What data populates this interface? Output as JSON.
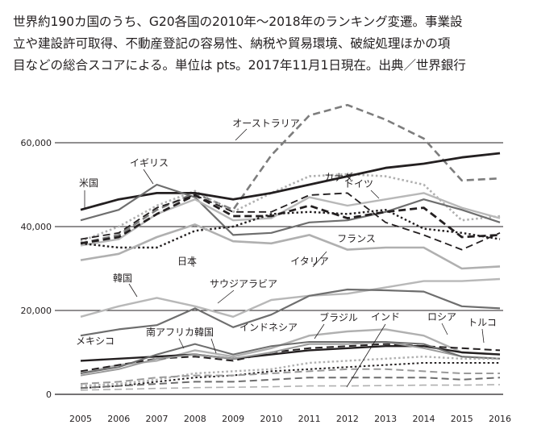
{
  "caption": {
    "lines": [
      "世界約190カ国のうち、G20各国の2010年～2018年のランキング変遷。事業設",
      "立や建設許可取得、不動産登記の容易性、納税や貿易環境、破綻処理ほかの項",
      "目などの総合スコアによる。単位は pts。2017年11月1日現在。出典／世界銀行"
    ]
  },
  "chart_data": {
    "type": "line",
    "x": [
      2005,
      2006,
      2007,
      2008,
      2009,
      2010,
      2011,
      2012,
      2013,
      2014,
      2015,
      2016
    ],
    "y_ticks": [
      {
        "value": 0,
        "label": "0"
      },
      {
        "value": 20000,
        "label": "20,000"
      },
      {
        "value": 40000,
        "label": "40,000"
      },
      {
        "value": 60000,
        "label": "60,000"
      }
    ],
    "ylim": [
      0,
      66000
    ],
    "grid": "horizontal",
    "series": [
      {
        "name": "オーストラリア",
        "color": "#7d7d7d",
        "style": "dashed",
        "width": 2.6,
        "values": [
          36000,
          38000,
          44000,
          48000,
          44000,
          57000,
          66500,
          69000,
          65500,
          61000,
          51000,
          51500
        ]
      },
      {
        "name": "カナダ",
        "color": "#b0b0b0",
        "style": "dotted",
        "width": 2.6,
        "values": [
          36500,
          40000,
          45000,
          48500,
          43500,
          48000,
          52000,
          52500,
          52000,
          50000,
          41500,
          42500
        ]
      },
      {
        "name": "米国",
        "color": "#231f20",
        "style": "solid",
        "width": 2.8,
        "values": [
          44000,
          46500,
          48000,
          48000,
          46500,
          48000,
          50000,
          52000,
          54000,
          55000,
          56500,
          57500
        ]
      },
      {
        "name": "イギリス",
        "color": "#6e6e6e",
        "style": "solid",
        "width": 2.2,
        "values": [
          41500,
          44000,
          50000,
          47000,
          38000,
          38500,
          41000,
          41500,
          43500,
          46500,
          44000,
          41000
        ]
      },
      {
        "name": "ドイツ",
        "color": "#b8b8b8",
        "style": "solid",
        "width": 2.4,
        "values": [
          35500,
          37000,
          43000,
          46500,
          41500,
          42000,
          47000,
          45000,
          46500,
          48000,
          44500,
          42000
        ]
      },
      {
        "name": "",
        "color": "#231f20",
        "style": "dashed",
        "width": 2.8,
        "values": [
          36000,
          37500,
          43000,
          47500,
          42500,
          42500,
          45000,
          42000,
          43500,
          44500,
          37500,
          38000
        ]
      },
      {
        "name": "フランス",
        "color": "#231f20",
        "style": "dashed",
        "width": 1.8,
        "values": [
          37000,
          38500,
          44500,
          47500,
          43500,
          43500,
          47500,
          48000,
          41000,
          38000,
          34500,
          38500
        ]
      },
      {
        "name": "日本",
        "color": "#231f20",
        "style": "dotted",
        "width": 2.4,
        "values": [
          36000,
          35000,
          35000,
          39000,
          40000,
          43000,
          43500,
          43000,
          44000,
          39500,
          38500,
          37000
        ]
      },
      {
        "name": "イタリア",
        "color": "#b0b0b0",
        "style": "solid",
        "width": 2.6,
        "values": [
          32000,
          33500,
          37500,
          40500,
          36500,
          36000,
          38000,
          34500,
          35000,
          35000,
          30000,
          30500
        ]
      },
      {
        "name": "韓国",
        "color": "#b8b8b8",
        "style": "solid",
        "width": 2.4,
        "values": [
          18500,
          21000,
          23000,
          21000,
          18500,
          22500,
          23500,
          24000,
          25500,
          27000,
          27000,
          27500
        ]
      },
      {
        "name": "サウジアラビア",
        "color": "#6e6e6e",
        "style": "solid",
        "width": 2.2,
        "values": [
          14000,
          15500,
          16500,
          20500,
          16000,
          19000,
          23500,
          25000,
          24800,
          24500,
          21000,
          20500
        ]
      },
      {
        "name": "ブラジル",
        "color": "#b0b0b0",
        "style": "solid",
        "width": 2.4,
        "values": [
          5000,
          7000,
          8000,
          10500,
          9000,
          11000,
          14000,
          15000,
          15500,
          14000,
          10000,
          9500
        ]
      },
      {
        "name": "メキシコ",
        "color": "#231f20",
        "style": "solid",
        "width": 2.4,
        "values": [
          8000,
          8500,
          9000,
          9500,
          8500,
          9500,
          10500,
          11000,
          11500,
          11500,
          10000,
          9500
        ]
      },
      {
        "name": "トルコ",
        "color": "#231f20",
        "style": "dashed",
        "width": 2.0,
        "values": [
          5500,
          7000,
          8500,
          9000,
          8000,
          10000,
          11000,
          11500,
          12000,
          11500,
          11000,
          10500
        ]
      },
      {
        "name": "インド",
        "color": "#9a9a9a",
        "style": "solid",
        "width": 2.0,
        "values": [
          4500,
          6000,
          8500,
          9500,
          8500,
          10000,
          12000,
          12000,
          12500,
          11000,
          9000,
          8500
        ]
      },
      {
        "name": "ロシア",
        "color": "#6e6e6e",
        "style": "solid",
        "width": 2.0,
        "values": [
          5000,
          6500,
          9500,
          12000,
          9500,
          11500,
          12500,
          12500,
          12500,
          12000,
          9000,
          8500
        ]
      },
      {
        "name": "インドネシア",
        "color": "#b0b0b0",
        "style": "dotted",
        "width": 2.4,
        "values": [
          2000,
          2500,
          3500,
          5000,
          5500,
          6000,
          7500,
          8000,
          8500,
          9000,
          8500,
          8500
        ]
      },
      {
        "name": "",
        "color": "#231f20",
        "style": "dotted",
        "width": 2.0,
        "values": [
          1500,
          2000,
          3000,
          4000,
          4500,
          5500,
          6000,
          6500,
          7000,
          7500,
          7500,
          7500
        ]
      },
      {
        "name": "",
        "color": "#9a9a9a",
        "style": "dashed",
        "width": 2.0,
        "values": [
          2500,
          3000,
          4000,
          4500,
          4500,
          5000,
          5500,
          6000,
          6000,
          5500,
          5000,
          5000
        ]
      },
      {
        "name": "",
        "color": "#6e6e6e",
        "style": "dashed",
        "width": 2.0,
        "values": [
          1500,
          2000,
          2500,
          3000,
          3000,
          3500,
          4000,
          4000,
          4000,
          4000,
          3500,
          4000
        ]
      },
      {
        "name": "",
        "color": "#b0b0b0",
        "style": "dashed",
        "width": 1.6,
        "values": [
          1000,
          1200,
          1400,
          1600,
          1700,
          1800,
          2000,
          2000,
          2100,
          2200,
          2200,
          2300
        ]
      }
    ],
    "labels": [
      {
        "text": "オーストラリア"
      },
      {
        "text": "カナダ"
      },
      {
        "text": "米国"
      },
      {
        "text": "イギリス"
      },
      {
        "text": "ドイツ"
      },
      {
        "text": "フランス"
      },
      {
        "text": "日本"
      },
      {
        "text": "イタリア"
      },
      {
        "text": "韓国"
      },
      {
        "text": "サウジアラビア"
      },
      {
        "text": "ブラジル"
      },
      {
        "text": "インド"
      },
      {
        "text": "ロシア"
      },
      {
        "text": "トルコ"
      },
      {
        "text": "メキシコ"
      },
      {
        "text": "南アフリカ"
      },
      {
        "text": "韓国"
      },
      {
        "text": "インドネシア"
      }
    ]
  }
}
